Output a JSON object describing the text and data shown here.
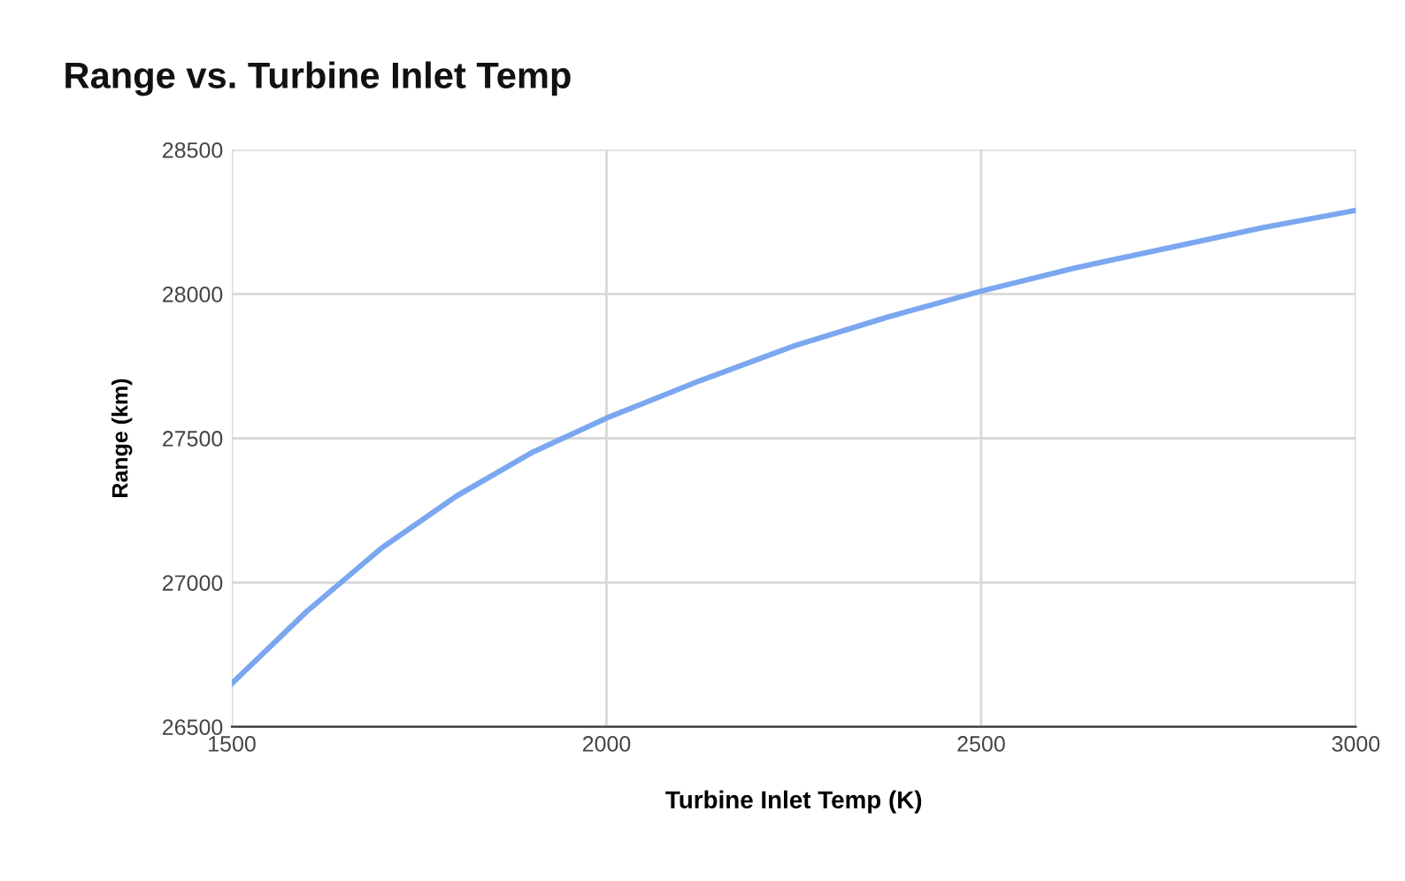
{
  "chart_data": {
    "type": "line",
    "title": "Range vs. Turbine Inlet Temp",
    "xlabel": "Turbine Inlet Temp (K)",
    "ylabel": "Range (km)",
    "x": [
      1500,
      1600,
      1700,
      1800,
      1900,
      2000,
      2125,
      2250,
      2375,
      2500,
      2625,
      2750,
      2875,
      3000
    ],
    "series": [
      {
        "color": "#7ba7f0",
        "values": [
          26650,
          26900,
          27120,
          27300,
          27450,
          27570,
          27700,
          27820,
          27920,
          28010,
          28090,
          28160,
          28230,
          28290
        ]
      }
    ],
    "xlim": [
      1500,
      3000
    ],
    "xticks": [
      1500,
      2000,
      2500,
      3000
    ],
    "ylim": [
      26500,
      28500
    ],
    "yticks": [
      26500,
      27000,
      27500,
      28000,
      28500
    ],
    "grid": true,
    "marker": "none",
    "line_style": "solid"
  }
}
